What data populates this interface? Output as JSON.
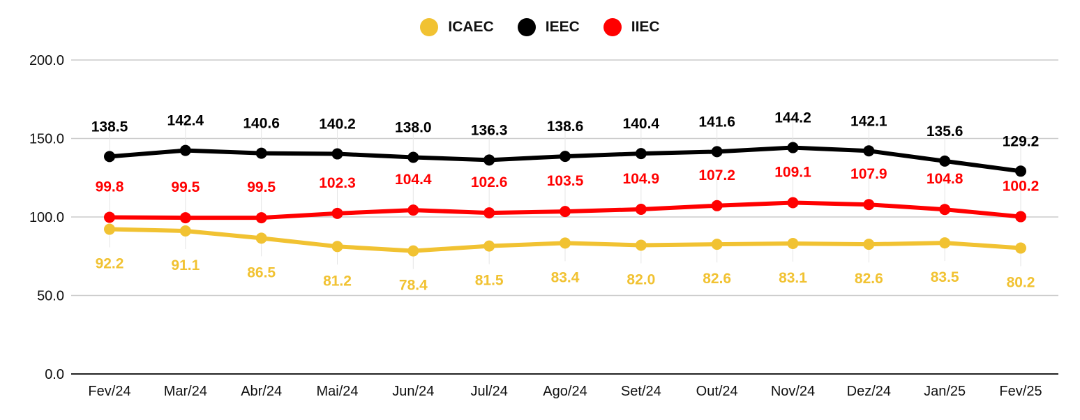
{
  "chart_data": {
    "type": "line",
    "categories": [
      "Fev/24",
      "Mar/24",
      "Abr/24",
      "Mai/24",
      "Jun/24",
      "Jul/24",
      "Ago/24",
      "Set/24",
      "Out/24",
      "Nov/24",
      "Dez/24",
      "Jan/25",
      "Fev/25"
    ],
    "ylim": [
      0,
      200
    ],
    "yticks": [
      "0.0",
      "50.0",
      "100.0",
      "150.0",
      "200.0"
    ],
    "ytick_values": [
      0,
      50,
      100,
      150,
      200
    ],
    "grid": true,
    "legend_position": "top-center",
    "series": [
      {
        "name": "ICAEC",
        "color": "#f1c232",
        "values": [
          92.2,
          91.1,
          86.5,
          81.2,
          78.4,
          81.5,
          83.4,
          82.0,
          82.6,
          83.1,
          82.6,
          83.5,
          80.2
        ],
        "labels": [
          "92.2",
          "91.1",
          "86.5",
          "81.2",
          "78.4",
          "81.5",
          "83.4",
          "82.0",
          "82.6",
          "83.1",
          "82.6",
          "83.5",
          "80.2"
        ]
      },
      {
        "name": "IEEC",
        "color": "#000000",
        "values": [
          138.5,
          142.4,
          140.6,
          140.2,
          138.0,
          136.3,
          138.6,
          140.4,
          141.6,
          144.2,
          142.1,
          135.6,
          129.2
        ],
        "labels": [
          "138.5",
          "142.4",
          "140.6",
          "140.2",
          "138.0",
          "136.3",
          "138.6",
          "140.4",
          "141.6",
          "144.2",
          "142.1",
          "135.6",
          "129.2"
        ]
      },
      {
        "name": "IIEC",
        "color": "#ff0000",
        "values": [
          99.8,
          99.5,
          99.5,
          102.3,
          104.4,
          102.6,
          103.5,
          104.9,
          107.2,
          109.1,
          107.9,
          104.8,
          100.2
        ],
        "labels": [
          "99.8",
          "99.5",
          "99.5",
          "102.3",
          "104.4",
          "102.6",
          "103.5",
          "104.9",
          "107.2",
          "109.1",
          "107.9",
          "104.8",
          "100.2"
        ]
      }
    ]
  }
}
